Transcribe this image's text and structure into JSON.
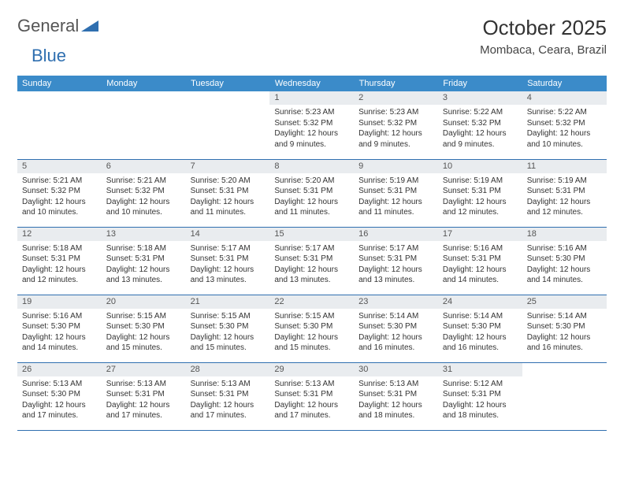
{
  "logo": {
    "word1": "General",
    "word2": "Blue"
  },
  "title": "October 2025",
  "location": "Mombaca, Ceara, Brazil",
  "colors": {
    "header_bg": "#3b8bc9",
    "header_text": "#ffffff",
    "daynum_bg": "#e9ecef",
    "rule": "#2f6fb0",
    "logo_word1": "#555555",
    "logo_word2": "#2f6fb0"
  },
  "days_of_week": [
    "Sunday",
    "Monday",
    "Tuesday",
    "Wednesday",
    "Thursday",
    "Friday",
    "Saturday"
  ],
  "weeks": [
    [
      {
        "n": "",
        "sr": "",
        "ss": "",
        "dl": ""
      },
      {
        "n": "",
        "sr": "",
        "ss": "",
        "dl": ""
      },
      {
        "n": "",
        "sr": "",
        "ss": "",
        "dl": ""
      },
      {
        "n": "1",
        "sr": "Sunrise: 5:23 AM",
        "ss": "Sunset: 5:32 PM",
        "dl": "Daylight: 12 hours and 9 minutes."
      },
      {
        "n": "2",
        "sr": "Sunrise: 5:23 AM",
        "ss": "Sunset: 5:32 PM",
        "dl": "Daylight: 12 hours and 9 minutes."
      },
      {
        "n": "3",
        "sr": "Sunrise: 5:22 AM",
        "ss": "Sunset: 5:32 PM",
        "dl": "Daylight: 12 hours and 9 minutes."
      },
      {
        "n": "4",
        "sr": "Sunrise: 5:22 AM",
        "ss": "Sunset: 5:32 PM",
        "dl": "Daylight: 12 hours and 10 minutes."
      }
    ],
    [
      {
        "n": "5",
        "sr": "Sunrise: 5:21 AM",
        "ss": "Sunset: 5:32 PM",
        "dl": "Daylight: 12 hours and 10 minutes."
      },
      {
        "n": "6",
        "sr": "Sunrise: 5:21 AM",
        "ss": "Sunset: 5:32 PM",
        "dl": "Daylight: 12 hours and 10 minutes."
      },
      {
        "n": "7",
        "sr": "Sunrise: 5:20 AM",
        "ss": "Sunset: 5:31 PM",
        "dl": "Daylight: 12 hours and 11 minutes."
      },
      {
        "n": "8",
        "sr": "Sunrise: 5:20 AM",
        "ss": "Sunset: 5:31 PM",
        "dl": "Daylight: 12 hours and 11 minutes."
      },
      {
        "n": "9",
        "sr": "Sunrise: 5:19 AM",
        "ss": "Sunset: 5:31 PM",
        "dl": "Daylight: 12 hours and 11 minutes."
      },
      {
        "n": "10",
        "sr": "Sunrise: 5:19 AM",
        "ss": "Sunset: 5:31 PM",
        "dl": "Daylight: 12 hours and 12 minutes."
      },
      {
        "n": "11",
        "sr": "Sunrise: 5:19 AM",
        "ss": "Sunset: 5:31 PM",
        "dl": "Daylight: 12 hours and 12 minutes."
      }
    ],
    [
      {
        "n": "12",
        "sr": "Sunrise: 5:18 AM",
        "ss": "Sunset: 5:31 PM",
        "dl": "Daylight: 12 hours and 12 minutes."
      },
      {
        "n": "13",
        "sr": "Sunrise: 5:18 AM",
        "ss": "Sunset: 5:31 PM",
        "dl": "Daylight: 12 hours and 13 minutes."
      },
      {
        "n": "14",
        "sr": "Sunrise: 5:17 AM",
        "ss": "Sunset: 5:31 PM",
        "dl": "Daylight: 12 hours and 13 minutes."
      },
      {
        "n": "15",
        "sr": "Sunrise: 5:17 AM",
        "ss": "Sunset: 5:31 PM",
        "dl": "Daylight: 12 hours and 13 minutes."
      },
      {
        "n": "16",
        "sr": "Sunrise: 5:17 AM",
        "ss": "Sunset: 5:31 PM",
        "dl": "Daylight: 12 hours and 13 minutes."
      },
      {
        "n": "17",
        "sr": "Sunrise: 5:16 AM",
        "ss": "Sunset: 5:31 PM",
        "dl": "Daylight: 12 hours and 14 minutes."
      },
      {
        "n": "18",
        "sr": "Sunrise: 5:16 AM",
        "ss": "Sunset: 5:30 PM",
        "dl": "Daylight: 12 hours and 14 minutes."
      }
    ],
    [
      {
        "n": "19",
        "sr": "Sunrise: 5:16 AM",
        "ss": "Sunset: 5:30 PM",
        "dl": "Daylight: 12 hours and 14 minutes."
      },
      {
        "n": "20",
        "sr": "Sunrise: 5:15 AM",
        "ss": "Sunset: 5:30 PM",
        "dl": "Daylight: 12 hours and 15 minutes."
      },
      {
        "n": "21",
        "sr": "Sunrise: 5:15 AM",
        "ss": "Sunset: 5:30 PM",
        "dl": "Daylight: 12 hours and 15 minutes."
      },
      {
        "n": "22",
        "sr": "Sunrise: 5:15 AM",
        "ss": "Sunset: 5:30 PM",
        "dl": "Daylight: 12 hours and 15 minutes."
      },
      {
        "n": "23",
        "sr": "Sunrise: 5:14 AM",
        "ss": "Sunset: 5:30 PM",
        "dl": "Daylight: 12 hours and 16 minutes."
      },
      {
        "n": "24",
        "sr": "Sunrise: 5:14 AM",
        "ss": "Sunset: 5:30 PM",
        "dl": "Daylight: 12 hours and 16 minutes."
      },
      {
        "n": "25",
        "sr": "Sunrise: 5:14 AM",
        "ss": "Sunset: 5:30 PM",
        "dl": "Daylight: 12 hours and 16 minutes."
      }
    ],
    [
      {
        "n": "26",
        "sr": "Sunrise: 5:13 AM",
        "ss": "Sunset: 5:30 PM",
        "dl": "Daylight: 12 hours and 17 minutes."
      },
      {
        "n": "27",
        "sr": "Sunrise: 5:13 AM",
        "ss": "Sunset: 5:31 PM",
        "dl": "Daylight: 12 hours and 17 minutes."
      },
      {
        "n": "28",
        "sr": "Sunrise: 5:13 AM",
        "ss": "Sunset: 5:31 PM",
        "dl": "Daylight: 12 hours and 17 minutes."
      },
      {
        "n": "29",
        "sr": "Sunrise: 5:13 AM",
        "ss": "Sunset: 5:31 PM",
        "dl": "Daylight: 12 hours and 17 minutes."
      },
      {
        "n": "30",
        "sr": "Sunrise: 5:13 AM",
        "ss": "Sunset: 5:31 PM",
        "dl": "Daylight: 12 hours and 18 minutes."
      },
      {
        "n": "31",
        "sr": "Sunrise: 5:12 AM",
        "ss": "Sunset: 5:31 PM",
        "dl": "Daylight: 12 hours and 18 minutes."
      },
      {
        "n": "",
        "sr": "",
        "ss": "",
        "dl": ""
      }
    ]
  ]
}
